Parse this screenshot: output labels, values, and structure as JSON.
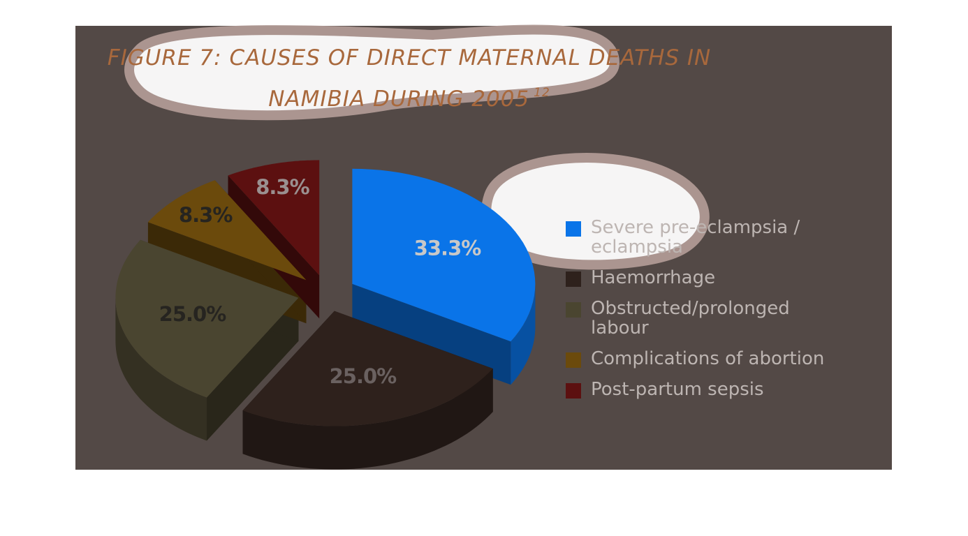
{
  "chart_data": {
    "type": "pie",
    "title": "FIGURE 7: CAUSES OF DIRECT MATERNAL DEATHS IN NAMIBIA DURING 2005",
    "title_note": "12",
    "categories": [
      "Severe pre-eclampsia / eclampsia",
      "Haemorrhage",
      "Obstructed/prolonged labour",
      "Complications of abortion",
      "Post-partum sepsis"
    ],
    "values": [
      33.3,
      25.0,
      25.0,
      8.3,
      8.3
    ],
    "value_labels": [
      "33.3%",
      "25.0%",
      "25.0%",
      "8.3%",
      "8.3%"
    ],
    "colors": [
      "#0a74e8",
      "#2e211c",
      "#4a4530",
      "#6b4a0c",
      "#5c1010"
    ],
    "legend": "right"
  }
}
